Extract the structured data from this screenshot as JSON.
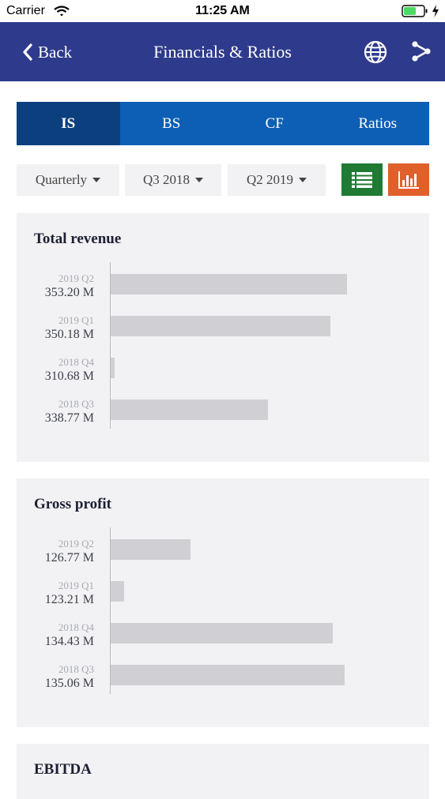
{
  "status_bar": {
    "carrier": "Carrier",
    "time": "11:25 AM"
  },
  "nav": {
    "back_label": "Back",
    "title": "Financials & Ratios"
  },
  "tabs": [
    {
      "label": "IS",
      "active": true
    },
    {
      "label": "BS",
      "active": false
    },
    {
      "label": "CF",
      "active": false
    },
    {
      "label": "Ratios",
      "active": false
    }
  ],
  "filters": {
    "period_type": "Quarterly",
    "from": "Q3 2018",
    "to": "Q2 2019"
  },
  "view_buttons": [
    "list-icon",
    "bar-chart-icon"
  ],
  "colors": {
    "nav": "#2e3b8c",
    "tab": "#0d5fb5",
    "tab_active": "#0b3f7e",
    "table_btn": "#1f7a33",
    "chart_btn": "#e0602b",
    "bar": "#d0d0d4"
  },
  "chart_data": [
    {
      "type": "bar",
      "title": "Total revenue",
      "categories": [
        "2019 Q2",
        "2019 Q1",
        "2018 Q4",
        "2018 Q3"
      ],
      "values": [
        353.2,
        350.18,
        310.68,
        338.77
      ],
      "value_labels": [
        "353.20 M",
        "350.18 M",
        "310.68 M",
        "338.77 M"
      ],
      "xlim": [
        310,
        356
      ]
    },
    {
      "type": "bar",
      "title": "Gross profit",
      "categories": [
        "2019 Q2",
        "2019 Q1",
        "2018 Q4",
        "2018 Q3"
      ],
      "values": [
        126.77,
        123.21,
        134.43,
        135.06
      ],
      "value_labels": [
        "126.77 M",
        "123.21 M",
        "134.43 M",
        "135.06 M"
      ],
      "xlim": [
        122.5,
        136
      ]
    },
    {
      "type": "bar",
      "title": "EBITDA",
      "categories": [],
      "values": []
    }
  ]
}
